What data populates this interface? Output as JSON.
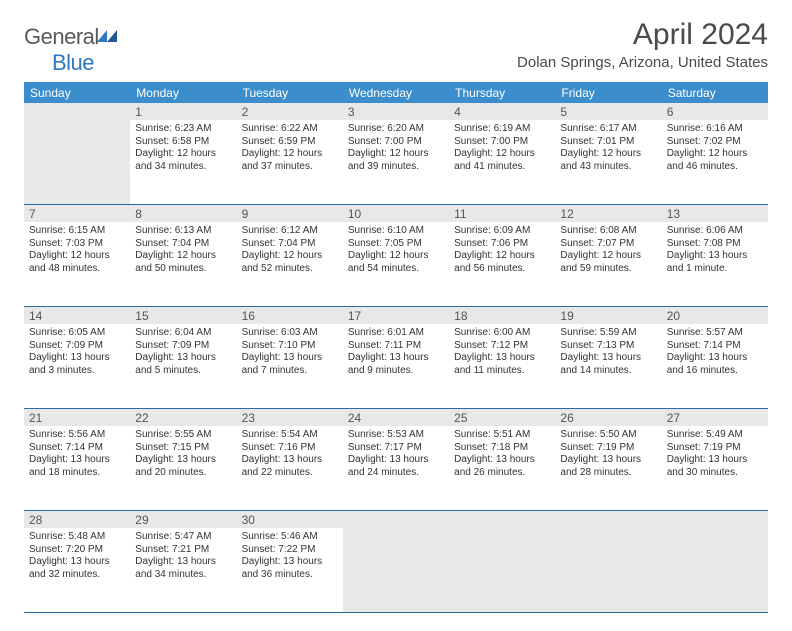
{
  "brand": {
    "name_a": "General",
    "name_b": "Blue"
  },
  "title": "April 2024",
  "subtitle": "Dolan Springs, Arizona, United States",
  "colors": {
    "header_bg": "#3c8dcc",
    "header_text": "#ffffff",
    "rule": "#2c6ca6",
    "empty_bg": "#e8e8e8",
    "text": "#333333",
    "title_text": "#4a4a4a"
  },
  "dayHeaders": [
    "Sunday",
    "Monday",
    "Tuesday",
    "Wednesday",
    "Thursday",
    "Friday",
    "Saturday"
  ],
  "weeks": [
    [
      {
        "day": "",
        "sunrise": "",
        "sunset": "",
        "daylight": "",
        "empty": true
      },
      {
        "day": "1",
        "sunrise": "Sunrise: 6:23 AM",
        "sunset": "Sunset: 6:58 PM",
        "daylight": "Daylight: 12 hours and 34 minutes."
      },
      {
        "day": "2",
        "sunrise": "Sunrise: 6:22 AM",
        "sunset": "Sunset: 6:59 PM",
        "daylight": "Daylight: 12 hours and 37 minutes."
      },
      {
        "day": "3",
        "sunrise": "Sunrise: 6:20 AM",
        "sunset": "Sunset: 7:00 PM",
        "daylight": "Daylight: 12 hours and 39 minutes."
      },
      {
        "day": "4",
        "sunrise": "Sunrise: 6:19 AM",
        "sunset": "Sunset: 7:00 PM",
        "daylight": "Daylight: 12 hours and 41 minutes."
      },
      {
        "day": "5",
        "sunrise": "Sunrise: 6:17 AM",
        "sunset": "Sunset: 7:01 PM",
        "daylight": "Daylight: 12 hours and 43 minutes."
      },
      {
        "day": "6",
        "sunrise": "Sunrise: 6:16 AM",
        "sunset": "Sunset: 7:02 PM",
        "daylight": "Daylight: 12 hours and 46 minutes."
      }
    ],
    [
      {
        "day": "7",
        "sunrise": "Sunrise: 6:15 AM",
        "sunset": "Sunset: 7:03 PM",
        "daylight": "Daylight: 12 hours and 48 minutes."
      },
      {
        "day": "8",
        "sunrise": "Sunrise: 6:13 AM",
        "sunset": "Sunset: 7:04 PM",
        "daylight": "Daylight: 12 hours and 50 minutes."
      },
      {
        "day": "9",
        "sunrise": "Sunrise: 6:12 AM",
        "sunset": "Sunset: 7:04 PM",
        "daylight": "Daylight: 12 hours and 52 minutes."
      },
      {
        "day": "10",
        "sunrise": "Sunrise: 6:10 AM",
        "sunset": "Sunset: 7:05 PM",
        "daylight": "Daylight: 12 hours and 54 minutes."
      },
      {
        "day": "11",
        "sunrise": "Sunrise: 6:09 AM",
        "sunset": "Sunset: 7:06 PM",
        "daylight": "Daylight: 12 hours and 56 minutes."
      },
      {
        "day": "12",
        "sunrise": "Sunrise: 6:08 AM",
        "sunset": "Sunset: 7:07 PM",
        "daylight": "Daylight: 12 hours and 59 minutes."
      },
      {
        "day": "13",
        "sunrise": "Sunrise: 6:06 AM",
        "sunset": "Sunset: 7:08 PM",
        "daylight": "Daylight: 13 hours and 1 minute."
      }
    ],
    [
      {
        "day": "14",
        "sunrise": "Sunrise: 6:05 AM",
        "sunset": "Sunset: 7:09 PM",
        "daylight": "Daylight: 13 hours and 3 minutes."
      },
      {
        "day": "15",
        "sunrise": "Sunrise: 6:04 AM",
        "sunset": "Sunset: 7:09 PM",
        "daylight": "Daylight: 13 hours and 5 minutes."
      },
      {
        "day": "16",
        "sunrise": "Sunrise: 6:03 AM",
        "sunset": "Sunset: 7:10 PM",
        "daylight": "Daylight: 13 hours and 7 minutes."
      },
      {
        "day": "17",
        "sunrise": "Sunrise: 6:01 AM",
        "sunset": "Sunset: 7:11 PM",
        "daylight": "Daylight: 13 hours and 9 minutes."
      },
      {
        "day": "18",
        "sunrise": "Sunrise: 6:00 AM",
        "sunset": "Sunset: 7:12 PM",
        "daylight": "Daylight: 13 hours and 11 minutes."
      },
      {
        "day": "19",
        "sunrise": "Sunrise: 5:59 AM",
        "sunset": "Sunset: 7:13 PM",
        "daylight": "Daylight: 13 hours and 14 minutes."
      },
      {
        "day": "20",
        "sunrise": "Sunrise: 5:57 AM",
        "sunset": "Sunset: 7:14 PM",
        "daylight": "Daylight: 13 hours and 16 minutes."
      }
    ],
    [
      {
        "day": "21",
        "sunrise": "Sunrise: 5:56 AM",
        "sunset": "Sunset: 7:14 PM",
        "daylight": "Daylight: 13 hours and 18 minutes."
      },
      {
        "day": "22",
        "sunrise": "Sunrise: 5:55 AM",
        "sunset": "Sunset: 7:15 PM",
        "daylight": "Daylight: 13 hours and 20 minutes."
      },
      {
        "day": "23",
        "sunrise": "Sunrise: 5:54 AM",
        "sunset": "Sunset: 7:16 PM",
        "daylight": "Daylight: 13 hours and 22 minutes."
      },
      {
        "day": "24",
        "sunrise": "Sunrise: 5:53 AM",
        "sunset": "Sunset: 7:17 PM",
        "daylight": "Daylight: 13 hours and 24 minutes."
      },
      {
        "day": "25",
        "sunrise": "Sunrise: 5:51 AM",
        "sunset": "Sunset: 7:18 PM",
        "daylight": "Daylight: 13 hours and 26 minutes."
      },
      {
        "day": "26",
        "sunrise": "Sunrise: 5:50 AM",
        "sunset": "Sunset: 7:19 PM",
        "daylight": "Daylight: 13 hours and 28 minutes."
      },
      {
        "day": "27",
        "sunrise": "Sunrise: 5:49 AM",
        "sunset": "Sunset: 7:19 PM",
        "daylight": "Daylight: 13 hours and 30 minutes."
      }
    ],
    [
      {
        "day": "28",
        "sunrise": "Sunrise: 5:48 AM",
        "sunset": "Sunset: 7:20 PM",
        "daylight": "Daylight: 13 hours and 32 minutes."
      },
      {
        "day": "29",
        "sunrise": "Sunrise: 5:47 AM",
        "sunset": "Sunset: 7:21 PM",
        "daylight": "Daylight: 13 hours and 34 minutes."
      },
      {
        "day": "30",
        "sunrise": "Sunrise: 5:46 AM",
        "sunset": "Sunset: 7:22 PM",
        "daylight": "Daylight: 13 hours and 36 minutes."
      },
      {
        "day": "",
        "sunrise": "",
        "sunset": "",
        "daylight": "",
        "empty": true
      },
      {
        "day": "",
        "sunrise": "",
        "sunset": "",
        "daylight": "",
        "empty": true
      },
      {
        "day": "",
        "sunrise": "",
        "sunset": "",
        "daylight": "",
        "empty": true
      },
      {
        "day": "",
        "sunrise": "",
        "sunset": "",
        "daylight": "",
        "empty": true
      }
    ]
  ]
}
